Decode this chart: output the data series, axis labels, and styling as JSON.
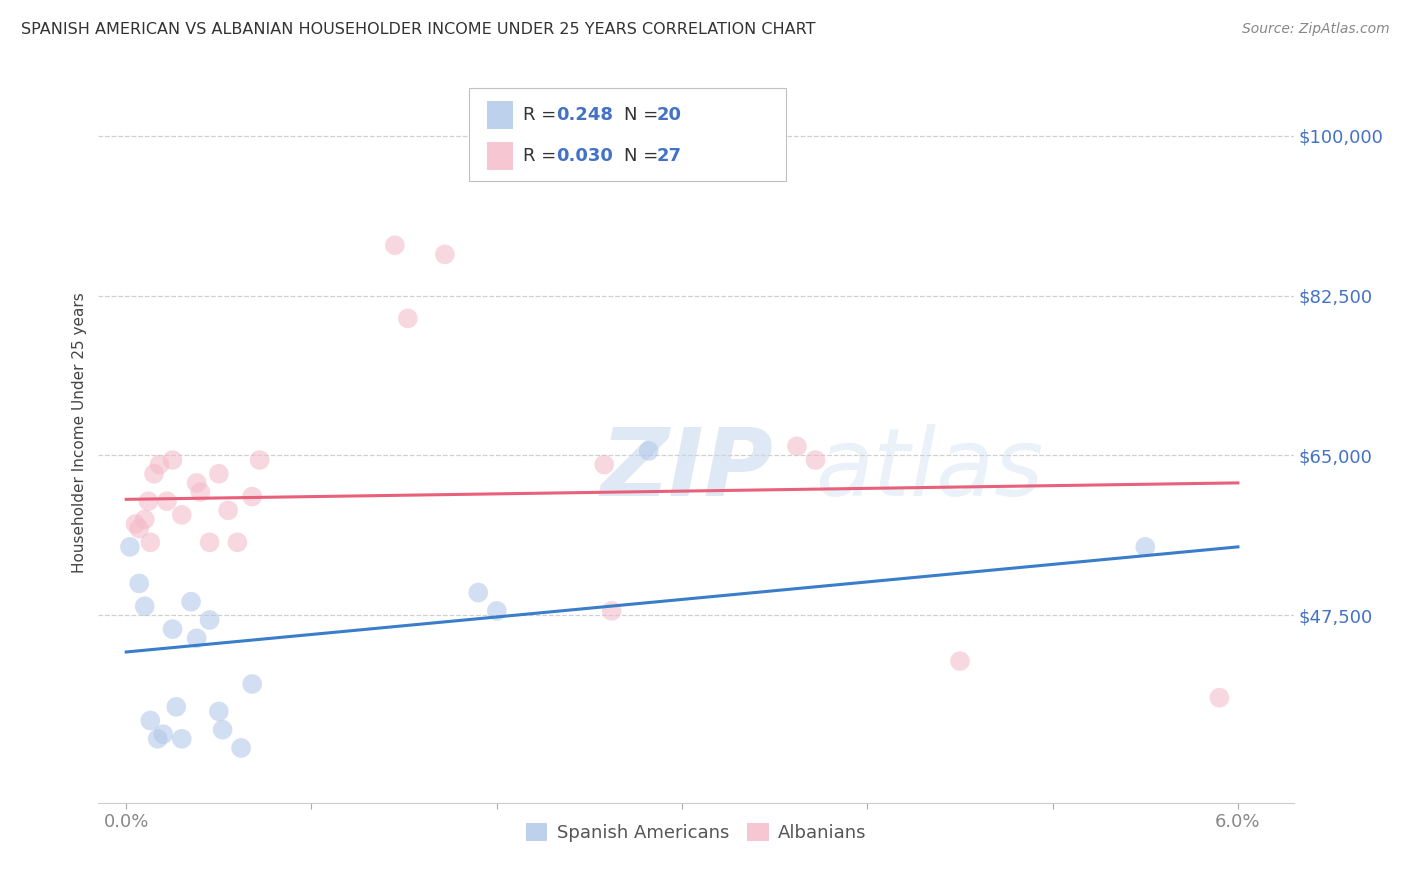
{
  "title": "SPANISH AMERICAN VS ALBANIAN HOUSEHOLDER INCOME UNDER 25 YEARS CORRELATION CHART",
  "source": "Source: ZipAtlas.com",
  "ylabel": "Householder Income Under 25 years",
  "ytick_labels": [
    "$47,500",
    "$65,000",
    "$82,500",
    "$100,000"
  ],
  "ytick_vals": [
    47500,
    65000,
    82500,
    100000
  ],
  "xtick_labels_edge": [
    "0.0%",
    "6.0%"
  ],
  "xtick_vals_edge": [
    0.0,
    6.0
  ],
  "xlim": [
    -0.15,
    6.3
  ],
  "ylim": [
    27000,
    108000
  ],
  "legend_r1": "R = 0.248",
  "legend_n1": "N = 20",
  "legend_r2": "R = 0.030",
  "legend_n2": "N = 27",
  "blue_scatter_color": "#aec6e8",
  "pink_scatter_color": "#f4b8c8",
  "blue_line_color": "#3a7dc9",
  "pink_line_color": "#e8607a",
  "blue_legend_color": "#aec6e8",
  "pink_legend_color": "#f4b8c8",
  "legend_text_color": "#4472c4",
  "watermark_zip": "ZIP",
  "watermark_atlas": "atlas",
  "spanish_x": [
    0.02,
    0.07,
    0.1,
    0.13,
    0.17,
    0.2,
    0.25,
    0.27,
    0.3,
    0.35,
    0.38,
    0.45,
    0.5,
    0.52,
    0.62,
    0.68,
    1.9,
    2.0,
    2.82,
    5.5
  ],
  "spanish_y": [
    55000,
    51000,
    48500,
    36000,
    34000,
    34500,
    46000,
    37500,
    34000,
    49000,
    45000,
    47000,
    37000,
    35000,
    33000,
    40000,
    50000,
    48000,
    65500,
    55000
  ],
  "albanian_x": [
    0.05,
    0.07,
    0.1,
    0.12,
    0.13,
    0.15,
    0.18,
    0.22,
    0.25,
    0.3,
    0.38,
    0.4,
    0.45,
    0.5,
    0.55,
    0.6,
    0.68,
    0.72,
    1.45,
    1.52,
    1.72,
    2.58,
    2.62,
    3.62,
    3.72,
    4.5,
    5.9
  ],
  "albanian_y": [
    57500,
    57000,
    58000,
    60000,
    55500,
    63000,
    64000,
    60000,
    64500,
    58500,
    62000,
    61000,
    55500,
    63000,
    59000,
    55500,
    60500,
    64500,
    88000,
    80000,
    87000,
    64000,
    48000,
    66000,
    64500,
    42500,
    38500
  ],
  "blue_trend_x": [
    0.0,
    6.0
  ],
  "blue_trend_y": [
    43500,
    55000
  ],
  "pink_trend_x": [
    0.0,
    6.0
  ],
  "pink_trend_y": [
    60200,
    62000
  ],
  "title_fontsize": 11.5,
  "source_fontsize": 10,
  "tick_fontsize": 13,
  "ylabel_fontsize": 11,
  "legend_fontsize": 13,
  "scatter_size": 200,
  "scatter_alpha": 0.55,
  "title_color": "#333333",
  "tick_color": "#4472c4",
  "ylabel_color": "#444444",
  "xtick_color": "#888888",
  "grid_color": "#d0d0d0",
  "background_color": "#ffffff",
  "spine_color": "#cccccc"
}
